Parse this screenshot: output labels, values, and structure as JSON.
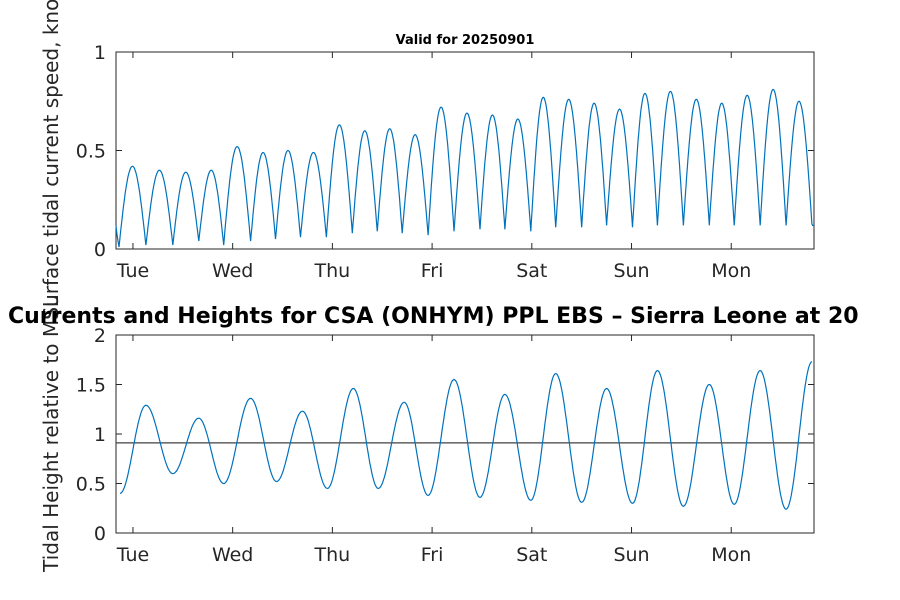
{
  "chart_data": [
    {
      "type": "line",
      "title": "Valid for 20250901",
      "ylabel": "Surface tidal current speed, knots",
      "xlabel": "",
      "ylim": [
        0,
        1
      ],
      "yticks": [
        0,
        0.5,
        1
      ],
      "ytick_labels": [
        "0",
        "0.5",
        "1"
      ],
      "xlim": [
        0,
        7
      ],
      "x_tick_positions": [
        0.17,
        1.17,
        2.17,
        3.17,
        4.17,
        5.17,
        6.17
      ],
      "categories": [
        "Tue",
        "Wed",
        "Thu",
        "Fri",
        "Sat",
        "Sun",
        "Mon"
      ],
      "grid": false,
      "series": [
        {
          "name": "Surface tidal current speed",
          "color": "#0072bd",
          "x_unit": "days",
          "peaks": [
            [
              0.17,
              0.42
            ],
            [
              0.43,
              0.4
            ],
            [
              0.7,
              0.39
            ],
            [
              0.95,
              0.4
            ],
            [
              1.22,
              0.52
            ],
            [
              1.47,
              0.49
            ],
            [
              1.72,
              0.5
            ],
            [
              1.97,
              0.49
            ],
            [
              2.24,
              0.63
            ],
            [
              2.5,
              0.6
            ],
            [
              2.75,
              0.61
            ],
            [
              3.0,
              0.58
            ],
            [
              3.26,
              0.72
            ],
            [
              3.52,
              0.69
            ],
            [
              3.78,
              0.68
            ],
            [
              4.03,
              0.66
            ],
            [
              4.28,
              0.77
            ],
            [
              4.54,
              0.76
            ],
            [
              4.79,
              0.74
            ],
            [
              5.05,
              0.71
            ],
            [
              5.3,
              0.79
            ],
            [
              5.56,
              0.8
            ],
            [
              5.82,
              0.76
            ],
            [
              6.07,
              0.74
            ],
            [
              6.33,
              0.78
            ],
            [
              6.59,
              0.81
            ],
            [
              6.85,
              0.75
            ]
          ],
          "troughs": [
            [
              0.03,
              0.01
            ],
            [
              0.3,
              0.02
            ],
            [
              0.57,
              0.02
            ],
            [
              0.83,
              0.04
            ],
            [
              1.08,
              0.02
            ],
            [
              1.35,
              0.04
            ],
            [
              1.6,
              0.05
            ],
            [
              1.85,
              0.06
            ],
            [
              2.11,
              0.06
            ],
            [
              2.37,
              0.08
            ],
            [
              2.62,
              0.09
            ],
            [
              2.87,
              0.08
            ],
            [
              3.13,
              0.07
            ],
            [
              3.39,
              0.09
            ],
            [
              3.65,
              0.1
            ],
            [
              3.9,
              0.1
            ],
            [
              4.16,
              0.09
            ],
            [
              4.41,
              0.11
            ],
            [
              4.67,
              0.11
            ],
            [
              4.92,
              0.12
            ],
            [
              5.18,
              0.11
            ],
            [
              5.43,
              0.12
            ],
            [
              5.69,
              0.12
            ],
            [
              5.95,
              0.12
            ],
            [
              6.2,
              0.12
            ],
            [
              6.46,
              0.12
            ],
            [
              6.72,
              0.12
            ]
          ],
          "end_value": 0.17
        }
      ]
    },
    {
      "type": "line",
      "title": "Currents and Heights for CSA (ONHYM) PPL EBS  – Sierra Leone at 20",
      "ylabel": "Tidal Height relative to MSL",
      "xlabel": "",
      "ylim": [
        0,
        2
      ],
      "yticks": [
        0,
        0.5,
        1,
        1.5,
        2
      ],
      "ytick_labels": [
        "0",
        "0.5",
        "1",
        "1.5",
        "2"
      ],
      "xlim": [
        0,
        7
      ],
      "x_tick_positions": [
        0.17,
        1.17,
        2.17,
        3.17,
        4.17,
        5.17,
        6.17
      ],
      "categories": [
        "Tue",
        "Wed",
        "Thu",
        "Fri",
        "Sat",
        "Sun",
        "Mon"
      ],
      "grid": false,
      "reference_line": {
        "y": 0.91,
        "color": "#404040"
      },
      "series": [
        {
          "name": "Tidal height",
          "color": "#0072bd",
          "x_unit": "days",
          "start_value": 0.52,
          "highs": [
            [
              0.3,
              1.29
            ],
            [
              0.83,
              1.16
            ],
            [
              1.35,
              1.36
            ],
            [
              1.87,
              1.23
            ],
            [
              2.38,
              1.46
            ],
            [
              2.89,
              1.32
            ],
            [
              3.39,
              1.55
            ],
            [
              3.9,
              1.4
            ],
            [
              4.41,
              1.61
            ],
            [
              4.92,
              1.46
            ],
            [
              5.43,
              1.64
            ],
            [
              5.95,
              1.5
            ],
            [
              6.46,
              1.64
            ]
          ],
          "lows": [
            [
              0.57,
              0.6
            ],
            [
              1.08,
              0.5
            ],
            [
              1.61,
              0.52
            ],
            [
              2.12,
              0.45
            ],
            [
              2.63,
              0.45
            ],
            [
              3.13,
              0.38
            ],
            [
              3.65,
              0.36
            ],
            [
              4.16,
              0.33
            ],
            [
              4.67,
              0.31
            ],
            [
              5.18,
              0.3
            ],
            [
              5.69,
              0.27
            ],
            [
              6.2,
              0.29
            ],
            [
              6.72,
              0.24
            ]
          ],
          "end_value": 1.53
        }
      ]
    }
  ]
}
